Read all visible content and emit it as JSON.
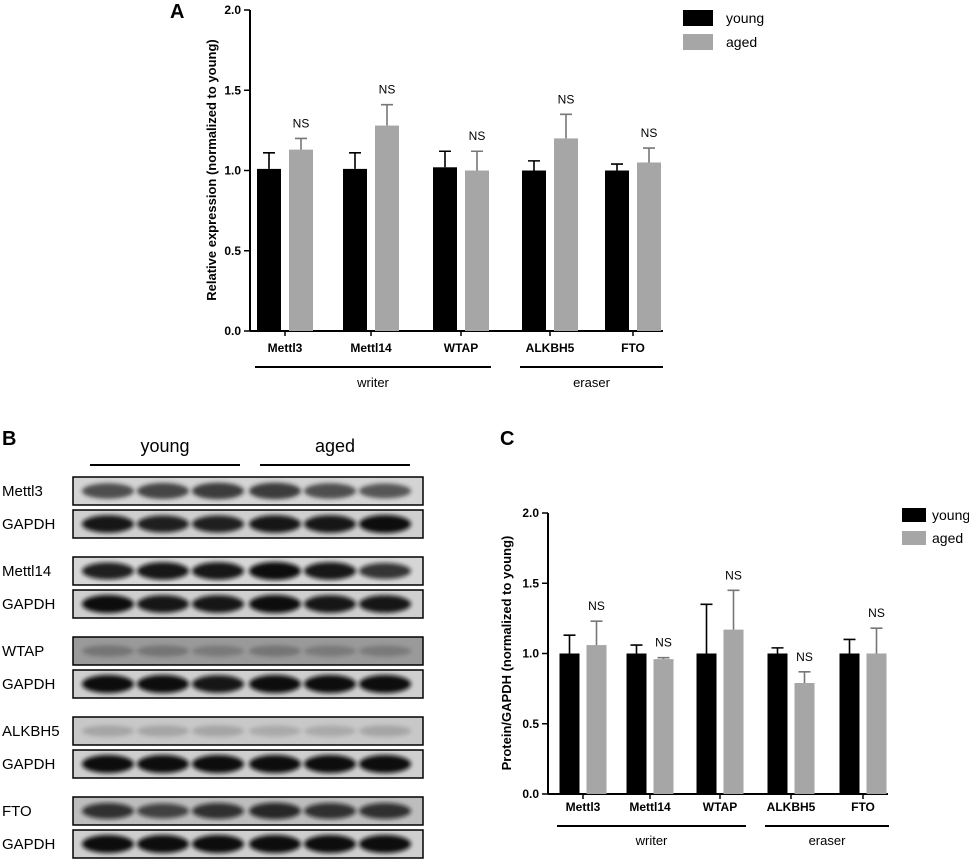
{
  "panels": {
    "a": "A",
    "b": "B",
    "c": "C"
  },
  "legend": {
    "young": "young",
    "aged": "aged",
    "young_color": "#000000",
    "aged_color": "#a6a6a6"
  },
  "chart_data": [
    {
      "type": "bar",
      "panel": "A",
      "ylabel": "Relative expression (normalized to young)",
      "ylim": [
        0,
        2.0
      ],
      "yticks": [
        "0.0",
        "0.5",
        "1.0",
        "1.5",
        "2.0"
      ],
      "categories": [
        "Mettl3",
        "Mettl14",
        "WTAP",
        "ALKBH5",
        "FTO"
      ],
      "series": [
        {
          "name": "young",
          "values": [
            1.01,
            1.01,
            1.02,
            1.0,
            1.0
          ],
          "errors": [
            0.1,
            0.1,
            0.1,
            0.06,
            0.04
          ]
        },
        {
          "name": "aged",
          "values": [
            1.13,
            1.28,
            1.0,
            1.2,
            1.05
          ],
          "errors": [
            0.07,
            0.13,
            0.12,
            0.15,
            0.09
          ]
        }
      ],
      "annotations": [
        "NS",
        "NS",
        "NS",
        "NS",
        "NS"
      ],
      "groups": [
        {
          "label": "writer",
          "categories": [
            "Mettl3",
            "Mettl14",
            "WTAP"
          ]
        },
        {
          "label": "eraser",
          "categories": [
            "ALKBH5",
            "FTO"
          ]
        }
      ],
      "legend_position": "top-right"
    },
    {
      "type": "bar",
      "panel": "C",
      "ylabel": "Protein/GAPDH (normalized to young)",
      "ylim": [
        0,
        2.0
      ],
      "yticks": [
        "0.0",
        "0.5",
        "1.0",
        "1.5",
        "2.0"
      ],
      "categories": [
        "Mettl3",
        "Mettl14",
        "WTAP",
        "ALKBH5",
        "FTO"
      ],
      "series": [
        {
          "name": "young",
          "values": [
            1.0,
            1.0,
            1.0,
            1.0,
            1.0
          ],
          "errors": [
            0.13,
            0.06,
            0.35,
            0.04,
            0.1
          ]
        },
        {
          "name": "aged",
          "values": [
            1.06,
            0.96,
            1.17,
            0.79,
            1.0
          ],
          "errors": [
            0.17,
            0.01,
            0.28,
            0.08,
            0.18
          ]
        }
      ],
      "annotations": [
        "NS",
        "NS",
        "NS",
        "NS",
        "NS"
      ],
      "groups": [
        {
          "label": "writer",
          "categories": [
            "Mettl3",
            "Mettl14",
            "WTAP"
          ]
        },
        {
          "label": "eraser",
          "categories": [
            "ALKBH5",
            "FTO"
          ]
        }
      ],
      "legend_position": "top-right"
    }
  ],
  "blot": {
    "groups": [
      "young",
      "aged"
    ],
    "lanes_per_group": 3,
    "rows": [
      {
        "label": "Mettl3",
        "background": "#d4d4d4",
        "band_color": "#222222",
        "intensities": [
          0.75,
          0.8,
          0.85,
          0.85,
          0.75,
          0.7
        ]
      },
      {
        "label": "GAPDH",
        "background": "#cfcfcf",
        "band_color": "#111111",
        "intensities": [
          0.95,
          0.9,
          0.9,
          0.95,
          0.95,
          1.0
        ]
      },
      {
        "label": "Mettl14",
        "background": "#d6d6d6",
        "band_color": "#111111",
        "intensities": [
          0.9,
          0.95,
          0.95,
          1.0,
          0.95,
          0.8
        ]
      },
      {
        "label": "GAPDH",
        "background": "#cfcfcf",
        "band_color": "#111111",
        "intensities": [
          1.0,
          0.95,
          0.95,
          1.0,
          0.95,
          0.95
        ]
      },
      {
        "label": "WTAP",
        "background": "#9a9a9a",
        "band_color": "#333333",
        "intensities": [
          0.35,
          0.35,
          0.3,
          0.35,
          0.3,
          0.3
        ]
      },
      {
        "label": "GAPDH",
        "background": "#cfcfcf",
        "band_color": "#111111",
        "intensities": [
          1.0,
          1.0,
          0.95,
          1.0,
          1.0,
          1.0
        ]
      },
      {
        "label": "ALKBH5",
        "background": "#c8c8c8",
        "band_color": "#666666",
        "intensities": [
          0.35,
          0.35,
          0.35,
          0.3,
          0.3,
          0.35
        ]
      },
      {
        "label": "GAPDH",
        "background": "#cfcfcf",
        "band_color": "#111111",
        "intensities": [
          1.0,
          1.0,
          1.0,
          1.0,
          1.0,
          1.0
        ]
      },
      {
        "label": "FTO",
        "background": "#bdbdbd",
        "band_color": "#111111",
        "intensities": [
          0.8,
          0.7,
          0.8,
          0.85,
          0.8,
          0.8
        ]
      },
      {
        "label": "GAPDH",
        "background": "#cfcfcf",
        "band_color": "#111111",
        "intensities": [
          1.0,
          1.0,
          1.0,
          1.0,
          1.0,
          1.0
        ]
      }
    ]
  }
}
